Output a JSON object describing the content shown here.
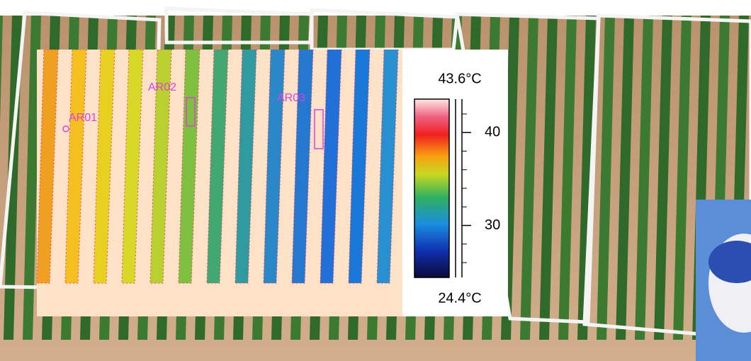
{
  "thermal_image": {
    "regions": [
      "AR01",
      "AR02",
      "AR03"
    ]
  },
  "color_scale": {
    "max": {
      "value": 43.6,
      "label": "43.6°C"
    },
    "min": {
      "value": 24.4,
      "label": "24.4°C"
    },
    "ticks": [
      40,
      30
    ],
    "minor_ticks": [
      26,
      28,
      32,
      34,
      36,
      38,
      42
    ]
  }
}
